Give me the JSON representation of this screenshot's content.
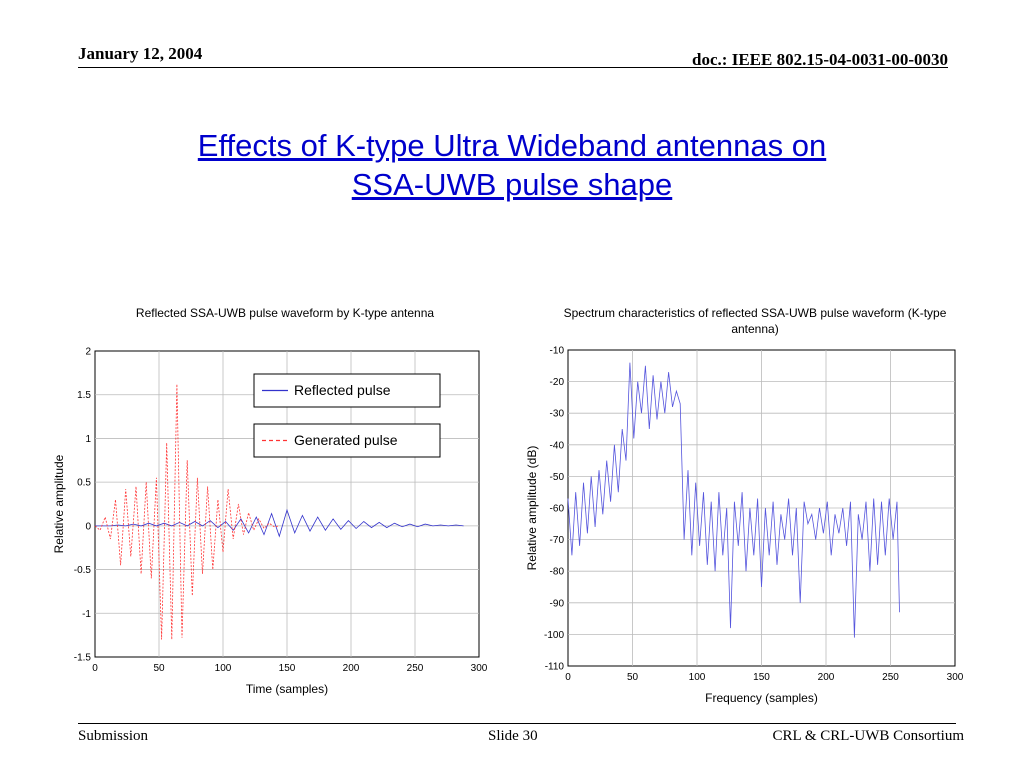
{
  "header": {
    "date": "January 12, 2004",
    "doc": "doc.: IEEE 802.15-04-0031-00-0030"
  },
  "title": {
    "line1": "Effects of K-type Ultra Wideband antennas on",
    "line2": "SSA-UWB pulse shape"
  },
  "footer": {
    "left": "Submission",
    "center": "Slide 30",
    "right": "CRL & CRL-UWB Consortium"
  },
  "chart_data": [
    {
      "type": "line",
      "title": "Reflected SSA-UWB pulse waveform by K-type antenna",
      "xlabel": "Time (samples)",
      "ylabel": "Relative amplitude",
      "xlim": [
        0,
        300
      ],
      "ylim": [
        -1.5,
        2
      ],
      "xticks": [
        0,
        50,
        100,
        150,
        200,
        250,
        300
      ],
      "yticks": [
        -1.5,
        -1,
        -0.5,
        0,
        0.5,
        1,
        1.5,
        2
      ],
      "grid": true,
      "legend": "top-right",
      "series": [
        {
          "name": "Reflected pulse",
          "style": "solid",
          "color": "#3333cc",
          "x": [
            0,
            6,
            12,
            18,
            24,
            30,
            36,
            42,
            48,
            54,
            60,
            66,
            72,
            78,
            84,
            90,
            96,
            102,
            108,
            114,
            120,
            126,
            132,
            138,
            144,
            150,
            156,
            162,
            168,
            174,
            180,
            186,
            192,
            198,
            204,
            210,
            216,
            222,
            228,
            234,
            240,
            246,
            252,
            258,
            264,
            270,
            276,
            282,
            288
          ],
          "y": [
            0,
            0,
            0,
            0.01,
            0,
            0.02,
            0,
            0.03,
            0,
            0.03,
            0,
            0.04,
            0,
            0.05,
            0,
            0.06,
            -0.02,
            0.05,
            -0.05,
            0.08,
            -0.08,
            0.1,
            -0.1,
            0.14,
            -0.12,
            0.18,
            -0.08,
            0.12,
            -0.06,
            0.1,
            -0.05,
            0.08,
            -0.04,
            0.06,
            -0.03,
            0.05,
            -0.02,
            0.04,
            -0.02,
            0.03,
            -0.01,
            0.02,
            -0.01,
            0.02,
            0,
            0.01,
            0,
            0.01,
            0
          ]
        },
        {
          "name": "Generated pulse",
          "style": "dashed",
          "color": "#ff3333",
          "x": [
            0,
            4,
            8,
            12,
            16,
            20,
            24,
            28,
            32,
            36,
            40,
            44,
            48,
            52,
            56,
            60,
            64,
            68,
            72,
            76,
            80,
            84,
            88,
            92,
            96,
            100,
            104,
            108,
            112,
            116,
            120,
            124,
            128,
            132,
            136,
            140,
            144
          ],
          "y": [
            0,
            -0.05,
            0.1,
            -0.15,
            0.3,
            -0.45,
            0.42,
            -0.35,
            0.45,
            -0.55,
            0.5,
            -0.6,
            0.55,
            -1.3,
            0.95,
            -1.3,
            1.62,
            -1.28,
            0.75,
            -0.8,
            0.55,
            -0.55,
            0.45,
            -0.5,
            0.3,
            -0.3,
            0.42,
            -0.15,
            0.25,
            -0.1,
            0.15,
            -0.05,
            0.08,
            -0.03,
            0.03,
            -0.01,
            0
          ]
        }
      ]
    },
    {
      "type": "line",
      "title": "Spectrum characteristics of reflected SSA-UWB pulse waveform (K-type antenna)",
      "xlabel": "Frequency (samples)",
      "ylabel": "Relative amplitude (dB)",
      "xlim": [
        0,
        300
      ],
      "ylim": [
        -110,
        -10
      ],
      "xticks": [
        0,
        50,
        100,
        150,
        200,
        250,
        300
      ],
      "yticks": [
        -110,
        -100,
        -90,
        -80,
        -70,
        -60,
        -50,
        -40,
        -30,
        -20,
        -10
      ],
      "grid": true,
      "series": [
        {
          "name": "",
          "style": "solid",
          "color": "#5555dd",
          "x": [
            0,
            3,
            6,
            9,
            12,
            15,
            18,
            21,
            24,
            27,
            30,
            33,
            36,
            39,
            42,
            45,
            48,
            51,
            54,
            57,
            60,
            63,
            66,
            69,
            72,
            75,
            78,
            81,
            84,
            87,
            90,
            93,
            96,
            99,
            102,
            105,
            108,
            111,
            114,
            117,
            120,
            123,
            126,
            129,
            132,
            135,
            138,
            141,
            144,
            147,
            150,
            153,
            156,
            159,
            162,
            165,
            168,
            171,
            174,
            177,
            180,
            183,
            186,
            189,
            192,
            195,
            198,
            201,
            204,
            207,
            210,
            213,
            216,
            219,
            222,
            225,
            228,
            231,
            234,
            237,
            240,
            243,
            246,
            249,
            252,
            255,
            257
          ],
          "y": [
            -57,
            -75,
            -55,
            -72,
            -52,
            -68,
            -50,
            -66,
            -48,
            -62,
            -45,
            -58,
            -40,
            -55,
            -35,
            -45,
            -14,
            -38,
            -20,
            -30,
            -15,
            -35,
            -18,
            -32,
            -20,
            -30,
            -17,
            -28,
            -23,
            -27,
            -70,
            -48,
            -75,
            -52,
            -72,
            -55,
            -78,
            -58,
            -80,
            -55,
            -75,
            -60,
            -98,
            -58,
            -72,
            -55,
            -80,
            -60,
            -75,
            -57,
            -85,
            -60,
            -75,
            -58,
            -78,
            -62,
            -70,
            -57,
            -75,
            -60,
            -90,
            -58,
            -65,
            -62,
            -70,
            -60,
            -68,
            -58,
            -75,
            -62,
            -68,
            -60,
            -72,
            -58,
            -101,
            -62,
            -70,
            -58,
            -80,
            -57,
            -78,
            -58,
            -75,
            -57,
            -70,
            -58,
            -93
          ]
        }
      ]
    }
  ]
}
